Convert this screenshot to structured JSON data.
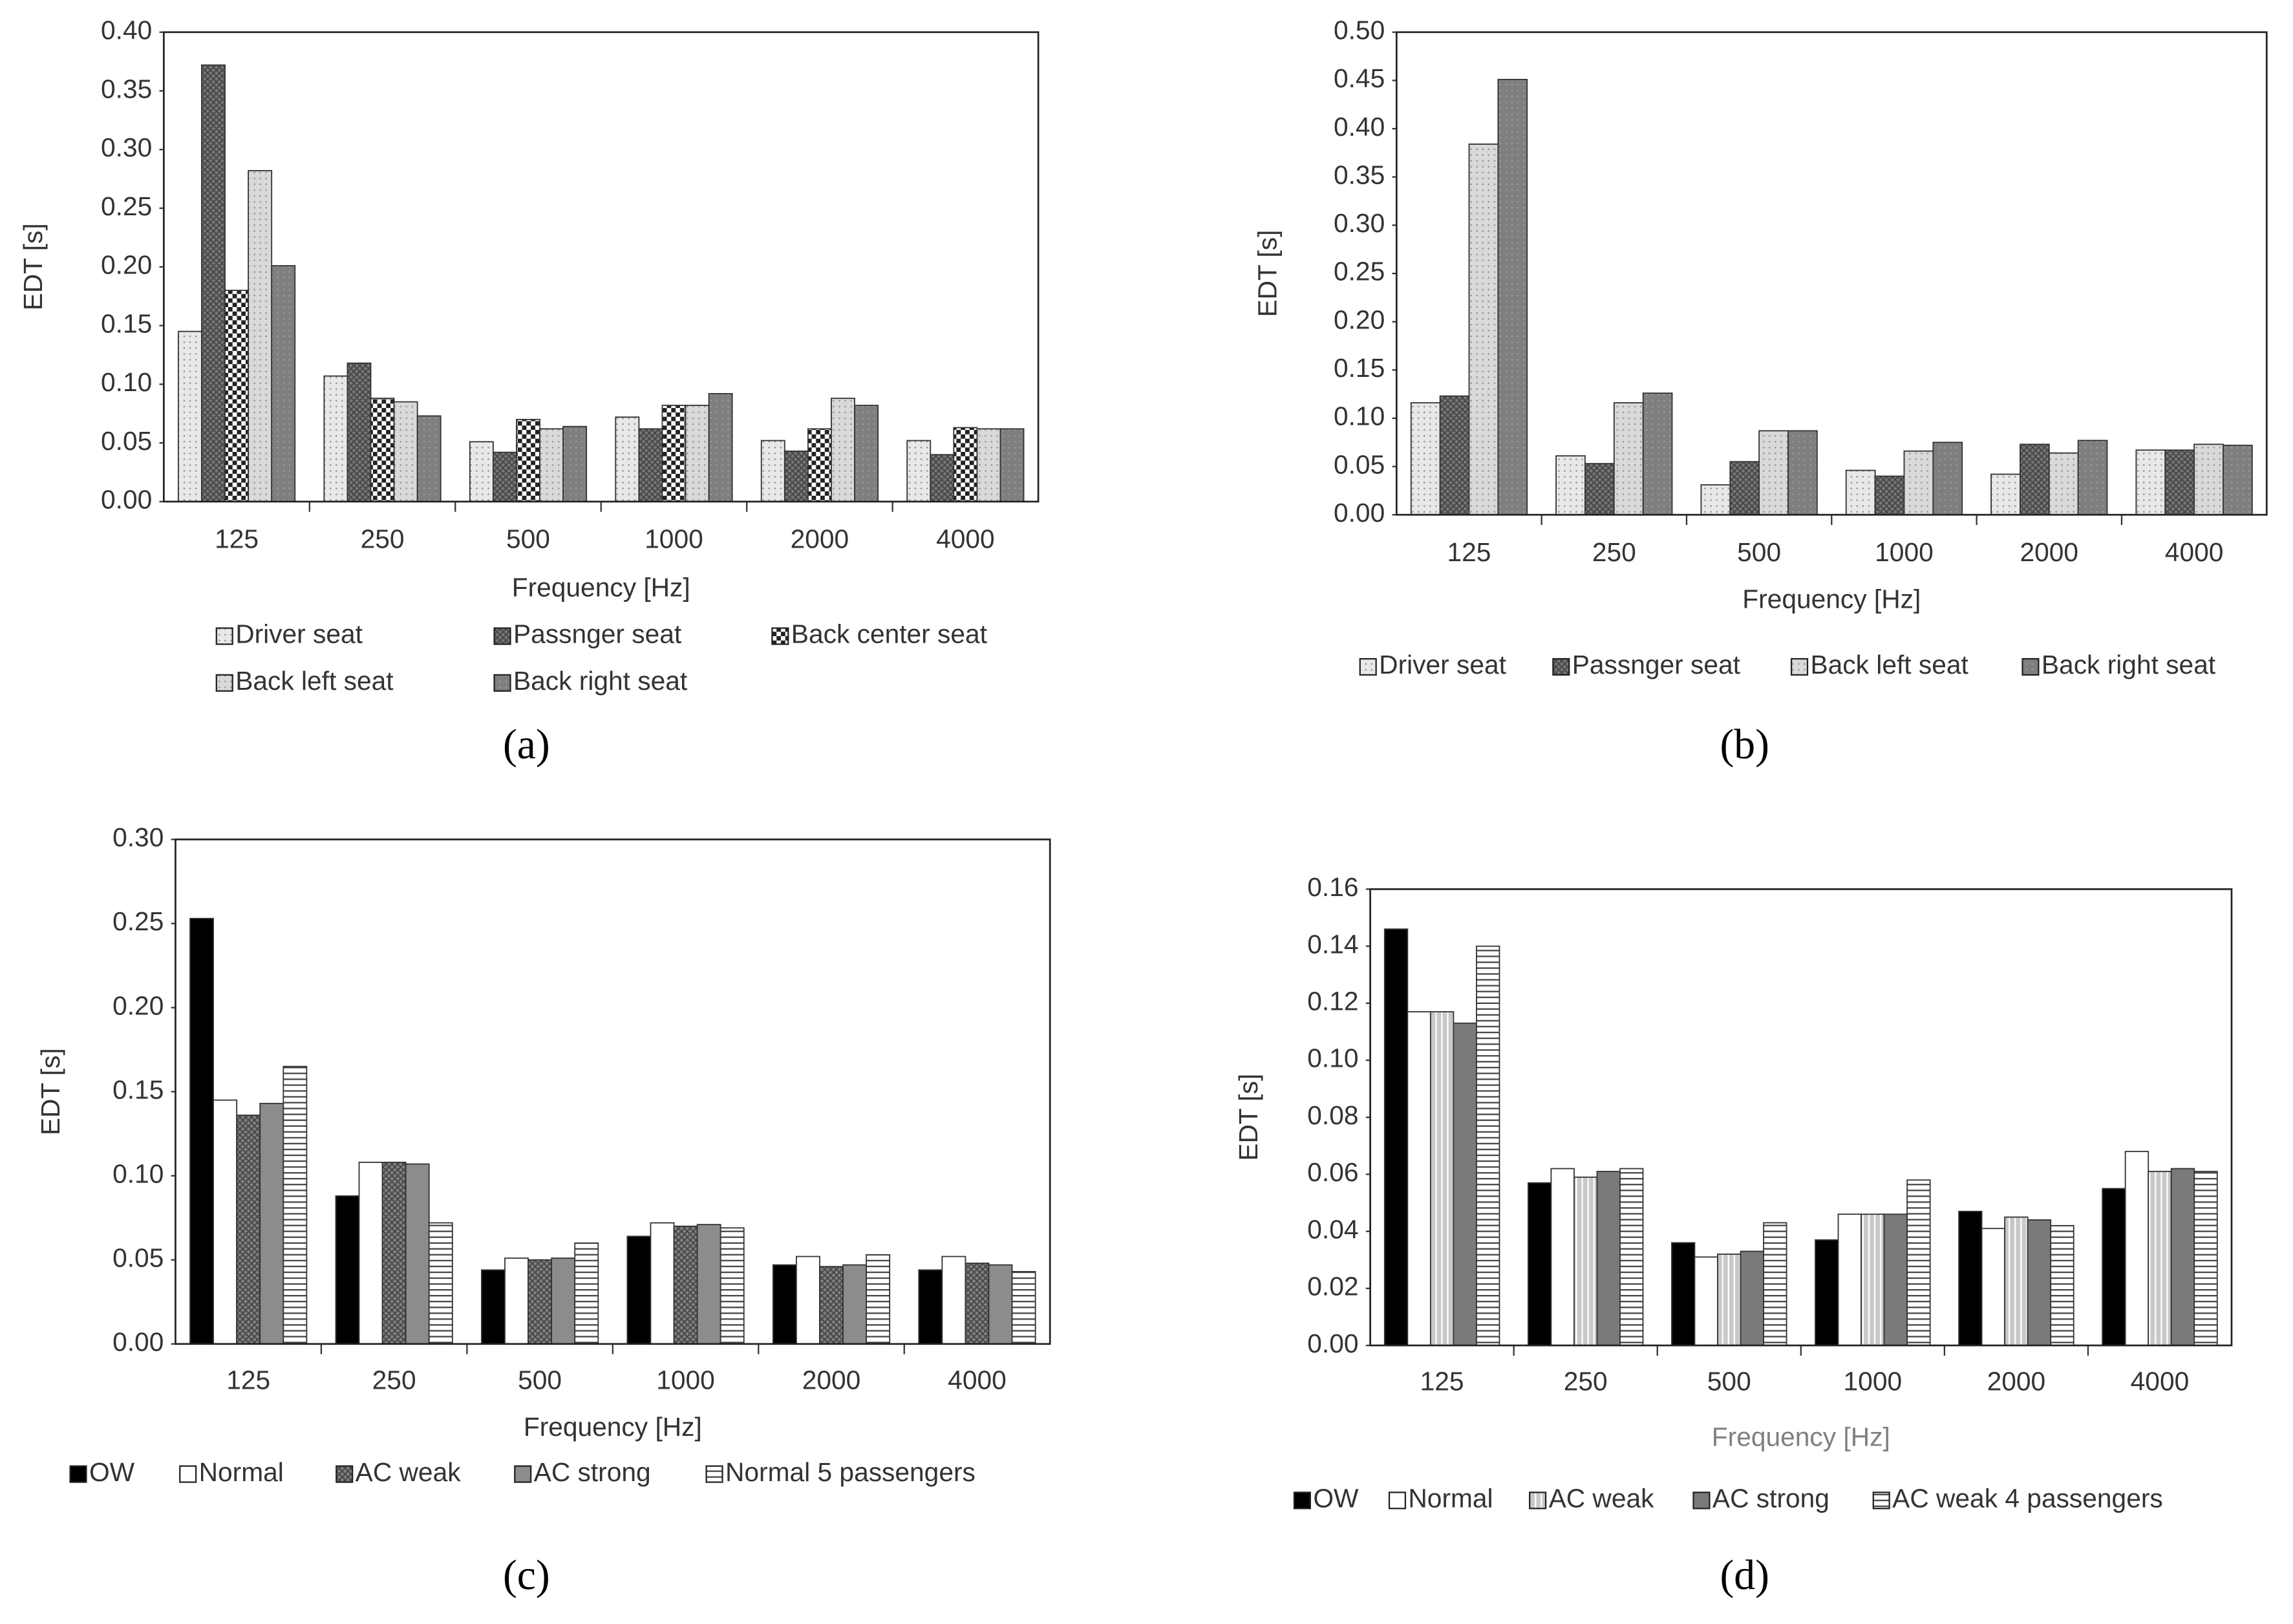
{
  "chart_data": [
    {
      "type": "bar",
      "caption": "(a)",
      "x_label": "Frequency [Hz]",
      "y_label": "EDT [s]",
      "categories": [
        "125",
        "250",
        "500",
        "1000",
        "2000",
        "4000"
      ],
      "ylim": [
        0,
        0.4
      ],
      "yticks": [
        {
          "value": 0,
          "label": "0.00"
        },
        0.05,
        {
          "value": 0.1,
          "label": "0.10"
        },
        0.15,
        {
          "value": 0.2,
          "label": "0.20"
        },
        0.25,
        {
          "value": 0.3,
          "label": "0.30"
        },
        0.35,
        {
          "value": 0.4,
          "label": "0.40"
        }
      ],
      "series": [
        {
          "name": "Driver seat",
          "color": "#e8e8e8",
          "pattern": "dots",
          "values": [
            0.145,
            0.107,
            0.051,
            0.072,
            0.052,
            0.052
          ]
        },
        {
          "name": "Passnger seat",
          "color": "#767676",
          "pattern": "crosshatch",
          "values": [
            0.372,
            0.118,
            0.042,
            0.062,
            0.043,
            0.04
          ]
        },
        {
          "name": "Back center seat",
          "color": "#ffffff",
          "pattern": "checker",
          "values": [
            0.18,
            0.088,
            0.07,
            0.082,
            0.062,
            0.063
          ]
        },
        {
          "name": "Back left seat",
          "color": "#d9d9d9",
          "pattern": "dots",
          "values": [
            0.282,
            0.085,
            0.062,
            0.082,
            0.088,
            0.062
          ]
        },
        {
          "name": "Back right seat",
          "color": "#7f7f7f",
          "pattern": "dots",
          "values": [
            0.201,
            0.073,
            0.064,
            0.092,
            0.082,
            0.062
          ]
        }
      ]
    },
    {
      "type": "bar",
      "caption": "(b)",
      "x_label": "Frequency [Hz]",
      "y_label": "EDT [s]",
      "categories": [
        "125",
        "250",
        "500",
        "1000",
        "2000",
        "4000"
      ],
      "ylim": [
        0,
        0.5
      ],
      "yticks": [
        {
          "value": 0,
          "label": "0.00"
        },
        0.05,
        {
          "value": 0.1,
          "label": "0.10"
        },
        0.15,
        {
          "value": 0.2,
          "label": "0.20"
        },
        0.25,
        {
          "value": 0.3,
          "label": "0.30"
        },
        0.35,
        {
          "value": 0.4,
          "label": "0.40"
        },
        0.45,
        {
          "value": 0.5,
          "label": "0.50"
        }
      ],
      "series": [
        {
          "name": "Driver seat",
          "color": "#e8e8e8",
          "pattern": "dots",
          "values": [
            0.116,
            0.061,
            0.031,
            0.046,
            0.042,
            0.067
          ]
        },
        {
          "name": "Passnger seat",
          "color": "#767676",
          "pattern": "crosshatch",
          "values": [
            0.123,
            0.053,
            0.055,
            0.04,
            0.073,
            0.067
          ]
        },
        {
          "name": "Back left seat",
          "color": "#d9d9d9",
          "pattern": "dots",
          "values": [
            0.384,
            0.116,
            0.087,
            0.066,
            0.064,
            0.073
          ]
        },
        {
          "name": "Back right seat",
          "color": "#7f7f7f",
          "pattern": "dots",
          "values": [
            0.451,
            0.126,
            0.087,
            0.075,
            0.077,
            0.072
          ]
        }
      ]
    },
    {
      "type": "bar",
      "caption": "(c)",
      "x_label": "Frequency [Hz]",
      "y_label": "EDT [s]",
      "categories": [
        "125",
        "250",
        "500",
        "1000",
        "2000",
        "4000"
      ],
      "ylim": [
        0,
        0.3
      ],
      "yticks": [
        {
          "value": 0,
          "label": "0.00"
        },
        0.05,
        {
          "value": 0.1,
          "label": "0.10"
        },
        0.15,
        {
          "value": 0.2,
          "label": "0.20"
        },
        0.25,
        {
          "value": 0.3,
          "label": "0.30"
        }
      ],
      "series": [
        {
          "name": "OW",
          "color": "#000000",
          "values": [
            0.253,
            0.088,
            0.044,
            0.064,
            0.047,
            0.044
          ]
        },
        {
          "name": "Normal",
          "color": "#ffffff",
          "values": [
            0.145,
            0.108,
            0.051,
            0.072,
            0.052,
            0.052
          ]
        },
        {
          "name": "AC weak",
          "color": "#808080",
          "pattern": "crosshatch",
          "values": [
            0.136,
            0.108,
            0.05,
            0.07,
            0.046,
            0.048
          ]
        },
        {
          "name": "AC strong",
          "color": "#8c8c8c",
          "values": [
            0.143,
            0.107,
            0.051,
            0.071,
            0.047,
            0.047
          ]
        },
        {
          "name": "Normal 5 passengers",
          "color": "#ffffff",
          "pattern": "hlines",
          "values": [
            0.165,
            0.072,
            0.06,
            0.069,
            0.053,
            0.043
          ]
        }
      ]
    },
    {
      "type": "bar",
      "caption": "(d)",
      "x_label": "Frequency [Hz]",
      "x_label_color": "#808080",
      "y_label": "EDT [s]",
      "categories": [
        "125",
        "250",
        "500",
        "1000",
        "2000",
        "4000"
      ],
      "ylim": [
        0,
        0.16
      ],
      "yticks": [
        {
          "value": 0,
          "label": "0.00"
        },
        0.02,
        0.04,
        0.06,
        0.08,
        {
          "value": 0.1,
          "label": "0.10"
        },
        0.12,
        0.14,
        0.16
      ],
      "series": [
        {
          "name": "OW",
          "color": "#000000",
          "values": [
            0.146,
            0.057,
            0.036,
            0.037,
            0.047,
            0.055
          ]
        },
        {
          "name": "Normal",
          "color": "#ffffff",
          "values": [
            0.117,
            0.062,
            0.031,
            0.046,
            0.041,
            0.068
          ]
        },
        {
          "name": "AC weak",
          "color": "#c8c8c8",
          "pattern": "vlines",
          "values": [
            0.117,
            0.059,
            0.032,
            0.046,
            0.045,
            0.061
          ]
        },
        {
          "name": "AC strong",
          "color": "#7a7a7a",
          "values": [
            0.113,
            0.061,
            0.033,
            0.046,
            0.044,
            0.062
          ]
        },
        {
          "name": "AC weak 4 passengers",
          "color": "#ffffff",
          "pattern": "hlines",
          "values": [
            0.14,
            0.062,
            0.043,
            0.058,
            0.042,
            0.061
          ]
        }
      ]
    }
  ]
}
